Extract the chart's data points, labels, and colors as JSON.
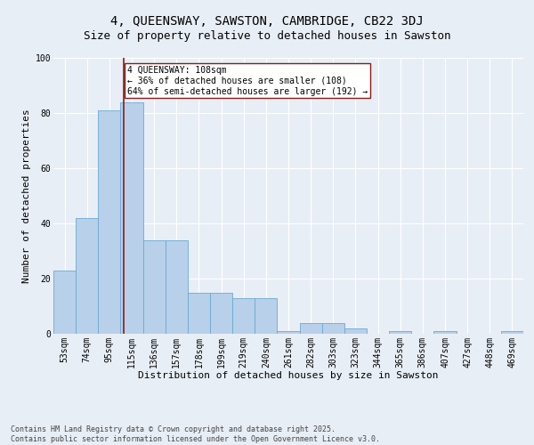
{
  "title": "4, QUEENSWAY, SAWSTON, CAMBRIDGE, CB22 3DJ",
  "subtitle": "Size of property relative to detached houses in Sawston",
  "xlabel": "Distribution of detached houses by size in Sawston",
  "ylabel": "Number of detached properties",
  "categories": [
    "53sqm",
    "74sqm",
    "95sqm",
    "115sqm",
    "136sqm",
    "157sqm",
    "178sqm",
    "199sqm",
    "219sqm",
    "240sqm",
    "261sqm",
    "282sqm",
    "303sqm",
    "323sqm",
    "344sqm",
    "365sqm",
    "386sqm",
    "407sqm",
    "427sqm",
    "448sqm",
    "469sqm"
  ],
  "values": [
    23,
    42,
    81,
    84,
    34,
    34,
    15,
    15,
    13,
    13,
    1,
    4,
    4,
    2,
    0,
    1,
    0,
    1,
    0,
    0,
    1
  ],
  "bar_color": "#b8d0ea",
  "bar_edge_color": "#6aaad4",
  "vline_x": 2.65,
  "vline_color": "#8b1a1a",
  "annotation_text": "4 QUEENSWAY: 108sqm\n← 36% of detached houses are smaller (108)\n64% of semi-detached houses are larger (192) →",
  "annotation_box_color": "white",
  "annotation_box_edge": "#8b1a1a",
  "background_color": "#e8eef5",
  "footer_text": "Contains HM Land Registry data © Crown copyright and database right 2025.\nContains public sector information licensed under the Open Government Licence v3.0.",
  "ylim": [
    0,
    100
  ],
  "title_fontsize": 10,
  "subtitle_fontsize": 9,
  "axis_label_fontsize": 8,
  "tick_fontsize": 7,
  "footer_fontsize": 6,
  "annotation_fontsize": 7
}
